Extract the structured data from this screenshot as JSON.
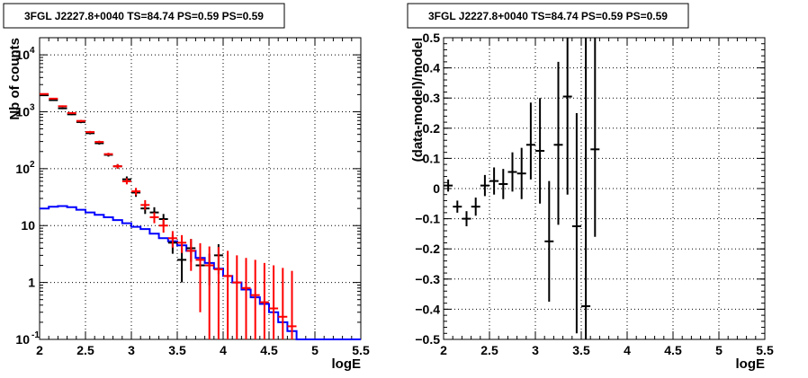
{
  "colors": {
    "data": "#000000",
    "model": "#ff0000",
    "source": "#0000ff",
    "grid": "#000000",
    "frame": "#000000"
  },
  "chart_data": [
    {
      "type": "scatter",
      "title": "3FGL J2227.8+0040 TS=84.74 PS=0.59 PS=0.59",
      "xlabel": "logE",
      "ylabel": "Nb of counts",
      "xlim": [
        2,
        5.5
      ],
      "ylim": [
        0.1,
        20000
      ],
      "ylog": true,
      "grid": true,
      "xticks": [
        "2",
        "2.5",
        "3",
        "3.5",
        "4",
        "4.5",
        "5",
        "5.5"
      ],
      "yticks": [
        {
          "value": 0.1,
          "base": "10",
          "exp": "-1"
        },
        {
          "value": 1,
          "base": "1",
          "exp": ""
        },
        {
          "value": 10,
          "base": "10",
          "exp": ""
        },
        {
          "value": 100,
          "base": "10",
          "exp": "2"
        },
        {
          "value": 1000,
          "base": "10",
          "exp": "3"
        },
        {
          "value": 10000,
          "base": "10",
          "exp": "4"
        }
      ],
      "series": [
        {
          "kind": "points",
          "x": [
            2.05,
            2.15,
            2.25,
            2.35,
            2.45,
            2.55,
            2.65,
            2.75,
            2.85,
            2.95,
            3.05,
            3.15,
            3.25,
            3.35,
            3.45,
            3.55,
            3.65,
            3.75,
            3.85,
            3.95
          ],
          "y": [
            1950,
            1600,
            1150,
            900,
            660,
            420,
            280,
            175,
            110,
            65,
            38,
            20,
            17,
            13,
            5,
            2.5,
            4,
            2,
            2,
            3
          ],
          "ylo": [
            1900,
            1560,
            1110,
            870,
            630,
            400,
            265,
            163,
            100,
            57,
            32,
            16,
            13,
            10,
            3.2,
            1.0,
            2.3,
            0.9,
            0.9,
            1.4
          ],
          "yhi": [
            2000,
            1640,
            1190,
            930,
            690,
            440,
            295,
            187,
            120,
            73,
            44,
            24,
            21,
            16,
            6.9,
            4.0,
            5.8,
            3.2,
            3.2,
            4.7
          ]
        },
        {
          "kind": "points",
          "x": [
            2.05,
            2.15,
            2.25,
            2.35,
            2.45,
            2.55,
            2.65,
            2.75,
            2.85,
            2.95,
            3.05,
            3.15,
            3.25,
            3.35,
            3.45,
            3.55,
            3.65,
            3.75,
            3.85,
            3.95,
            4.05,
            4.15,
            4.25,
            4.35,
            4.45,
            4.55,
            4.65,
            4.75
          ],
          "y": [
            2050,
            1700,
            1250,
            950,
            690,
            440,
            295,
            180,
            110,
            60,
            40,
            23,
            14,
            10,
            6,
            5,
            3.6,
            2.5,
            2,
            1.7,
            1.3,
            1.0,
            0.8,
            0.6,
            0.45,
            0.35,
            0.25,
            0.17
          ],
          "ylo": [
            2000,
            1650,
            1210,
            920,
            660,
            420,
            280,
            170,
            100,
            53,
            34,
            19,
            11,
            7.5,
            4.1,
            3.3,
            1.6,
            0.3,
            0.1,
            0.1,
            0.1,
            0.1,
            0.1,
            0.1,
            0.1,
            0.1,
            0.1,
            0.1
          ],
          "yhi": [
            2100,
            1750,
            1290,
            980,
            720,
            460,
            310,
            190,
            120,
            68,
            46,
            28,
            17,
            13,
            8,
            6.8,
            5.8,
            4.9,
            4.3,
            4.2,
            3.6,
            3.0,
            2.7,
            2.5,
            2.2,
            2.0,
            1.8,
            1.6
          ]
        },
        {
          "kind": "step",
          "edges": [
            2.0,
            2.1,
            2.2,
            2.3,
            2.4,
            2.5,
            2.6,
            2.7,
            2.8,
            2.9,
            3.0,
            3.1,
            3.2,
            3.3,
            3.4,
            3.5,
            3.6,
            3.7,
            3.8,
            3.9,
            4.0,
            4.1,
            4.2,
            4.3,
            4.4,
            4.5,
            4.6,
            4.7,
            4.8,
            5.5
          ],
          "values": [
            20,
            21.5,
            22,
            21,
            19,
            17,
            15.5,
            14,
            12.5,
            11,
            9.5,
            8.7,
            7.2,
            6.0,
            5.3,
            4.5,
            3.6,
            2.7,
            2.2,
            1.75,
            1.3,
            1.0,
            0.75,
            0.55,
            0.42,
            0.3,
            0.2,
            0.14,
            0.1
          ]
        }
      ]
    },
    {
      "type": "scatter",
      "title": "3FGL J2227.8+0040 TS=84.74 PS=0.59 PS=0.59",
      "xlabel": "logE",
      "ylabel": "(data-model)/model",
      "xlim": [
        2,
        5.5
      ],
      "ylim": [
        -0.5,
        0.5
      ],
      "grid": true,
      "xticks": [
        "2",
        "2.5",
        "3",
        "3.5",
        "4",
        "4.5",
        "5",
        "5.5"
      ],
      "yticks": [
        "−0.5",
        "−0.4",
        "−0.3",
        "−0.2",
        "−0.1",
        "0",
        "0.1",
        "0.2",
        "0.3",
        "0.4",
        "0.5"
      ],
      "series": [
        {
          "kind": "points",
          "x": [
            2.05,
            2.15,
            2.25,
            2.35,
            2.45,
            2.55,
            2.65,
            2.75,
            2.85,
            2.95,
            3.05,
            3.15,
            3.25,
            3.35,
            3.45,
            3.55,
            3.65
          ],
          "y": [
            0.01,
            -0.06,
            -0.1,
            -0.06,
            0.01,
            0.025,
            0.015,
            0.055,
            0.05,
            0.145,
            0.125,
            -0.175,
            0.145,
            0.305,
            -0.125,
            -0.39,
            0.13
          ],
          "ylo": [
            -0.01,
            -0.08,
            -0.125,
            -0.09,
            -0.025,
            -0.02,
            -0.035,
            -0.01,
            -0.035,
            0.03,
            -0.05,
            -0.375,
            -0.12,
            -0.02,
            -0.48,
            -0.5,
            -0.16
          ],
          "yhi": [
            0.03,
            -0.04,
            -0.075,
            -0.03,
            0.045,
            0.07,
            0.065,
            0.12,
            0.135,
            0.285,
            0.3,
            0.025,
            0.42,
            0.5,
            0.25,
            0.5,
            0.5
          ]
        }
      ]
    }
  ]
}
